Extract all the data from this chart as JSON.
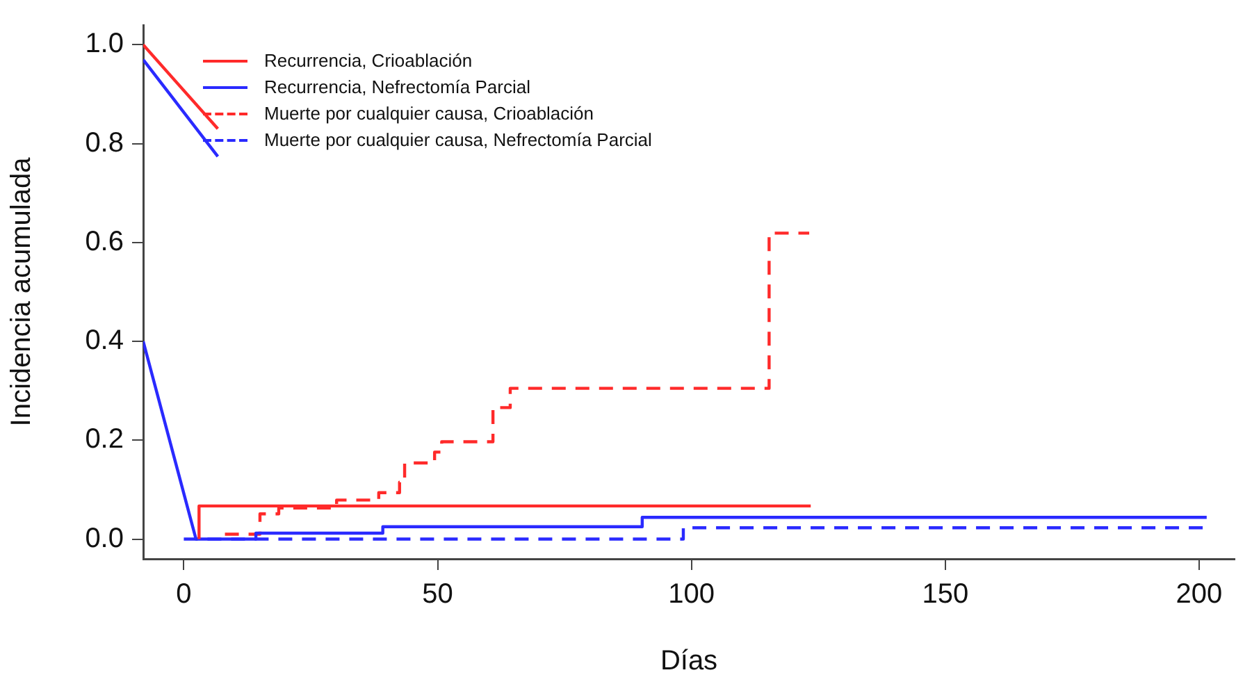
{
  "chart_data": {
    "type": "line",
    "xlabel": "Días",
    "ylabel": "Incidencia acumulada",
    "xlim": [
      -8,
      207
    ],
    "ylim": [
      -0.04,
      1.04
    ],
    "xticks": [
      0,
      50,
      100,
      150,
      200
    ],
    "yticks": [
      {
        "value": 0,
        "label": "0.0"
      },
      {
        "value": 0.2,
        "label": "0.2"
      },
      {
        "value": 0.4,
        "label": "0.4"
      },
      {
        "value": 0.6,
        "label": "0.6"
      },
      {
        "value": 0.8,
        "label": "0.8"
      },
      {
        "value": 1,
        "label": "1.0"
      }
    ],
    "grid": false,
    "legend": "top left",
    "marker": "none",
    "series": [
      {
        "name": "Recurrencia, Crioablación",
        "color": "#ff2a2a",
        "line_style": "solid",
        "x": [
          3,
          3,
          123.5
        ],
        "values": [
          0,
          0.067,
          0.067
        ]
      },
      {
        "name": "Recurrencia, Nefrectomía Parcial",
        "color": "#2a2aff",
        "line_style": "solid",
        "x": [
          -8,
          2.4,
          14.2,
          14.2,
          39.2,
          39.2,
          90.3,
          90.3,
          201.5
        ],
        "values": [
          0.4,
          0,
          0,
          0.012,
          0.012,
          0.025,
          0.025,
          0.044,
          0.044
        ]
      },
      {
        "name": "Muerte por cualquier causa, Crioablación",
        "color": "#ff2a2a",
        "line_style": "dashed",
        "x": [
          8.1,
          15,
          15,
          18.7,
          18.7,
          30.1,
          30.1,
          38.4,
          38.4,
          42.5,
          42.5,
          43.5,
          43.5,
          49.4,
          49.4,
          50.8,
          50.8,
          60.9,
          60.9,
          64.3,
          64.3,
          115.3,
          115.3,
          123.2
        ],
        "values": [
          0.01,
          0.01,
          0.051,
          0.051,
          0.063,
          0.063,
          0.079,
          0.079,
          0.094,
          0.094,
          0.115,
          0.115,
          0.154,
          0.154,
          0.176,
          0.176,
          0.197,
          0.197,
          0.266,
          0.266,
          0.305,
          0.305,
          0.619,
          0.619
        ]
      },
      {
        "name": "Muerte por cualquier causa, Nefrectomía Parcial",
        "color": "#2a2aff",
        "line_style": "dashed",
        "x": [
          0,
          98.4,
          98.4,
          201.5
        ],
        "values": [
          0,
          0,
          0.023,
          0.023
        ]
      },
      {
        "color": "#ff2a2a",
        "line_style": "solid",
        "x": [
          -8,
          6.7
        ],
        "values": [
          1.0,
          0.83
        ]
      },
      {
        "color": "#2a2aff",
        "line_style": "solid",
        "x": [
          -8,
          6.7
        ],
        "values": [
          0.97,
          0.774
        ]
      }
    ]
  }
}
